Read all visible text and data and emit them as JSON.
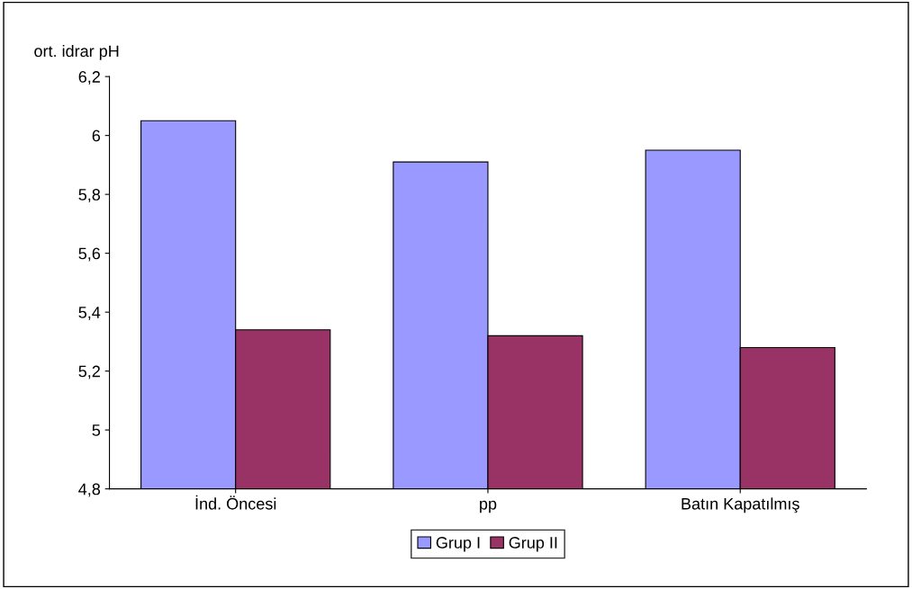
{
  "chart_data": {
    "type": "bar",
    "ylabel": "ort. idrar pH",
    "categories": [
      "İnd. Öncesi",
      "pp",
      "Batın Kapatılmış"
    ],
    "series": [
      {
        "name": "Grup I",
        "color": "#9999ff",
        "values": [
          6.05,
          5.91,
          5.95
        ]
      },
      {
        "name": "Grup II",
        "color": "#993366",
        "values": [
          5.34,
          5.32,
          5.28
        ]
      }
    ],
    "ylim": [
      4.8,
      6.2
    ],
    "yticks": [
      {
        "value": 4.8,
        "label": "4,8"
      },
      {
        "value": 5,
        "label": "5"
      },
      {
        "value": 5.2,
        "label": "5,2"
      },
      {
        "value": 5.4,
        "label": "5,4"
      },
      {
        "value": 5.6,
        "label": "5,6"
      },
      {
        "value": 5.8,
        "label": "5,8"
      },
      {
        "value": 6,
        "label": "6"
      },
      {
        "value": 6.2,
        "label": "6,2"
      }
    ],
    "grid": false,
    "legend": "bottom"
  }
}
